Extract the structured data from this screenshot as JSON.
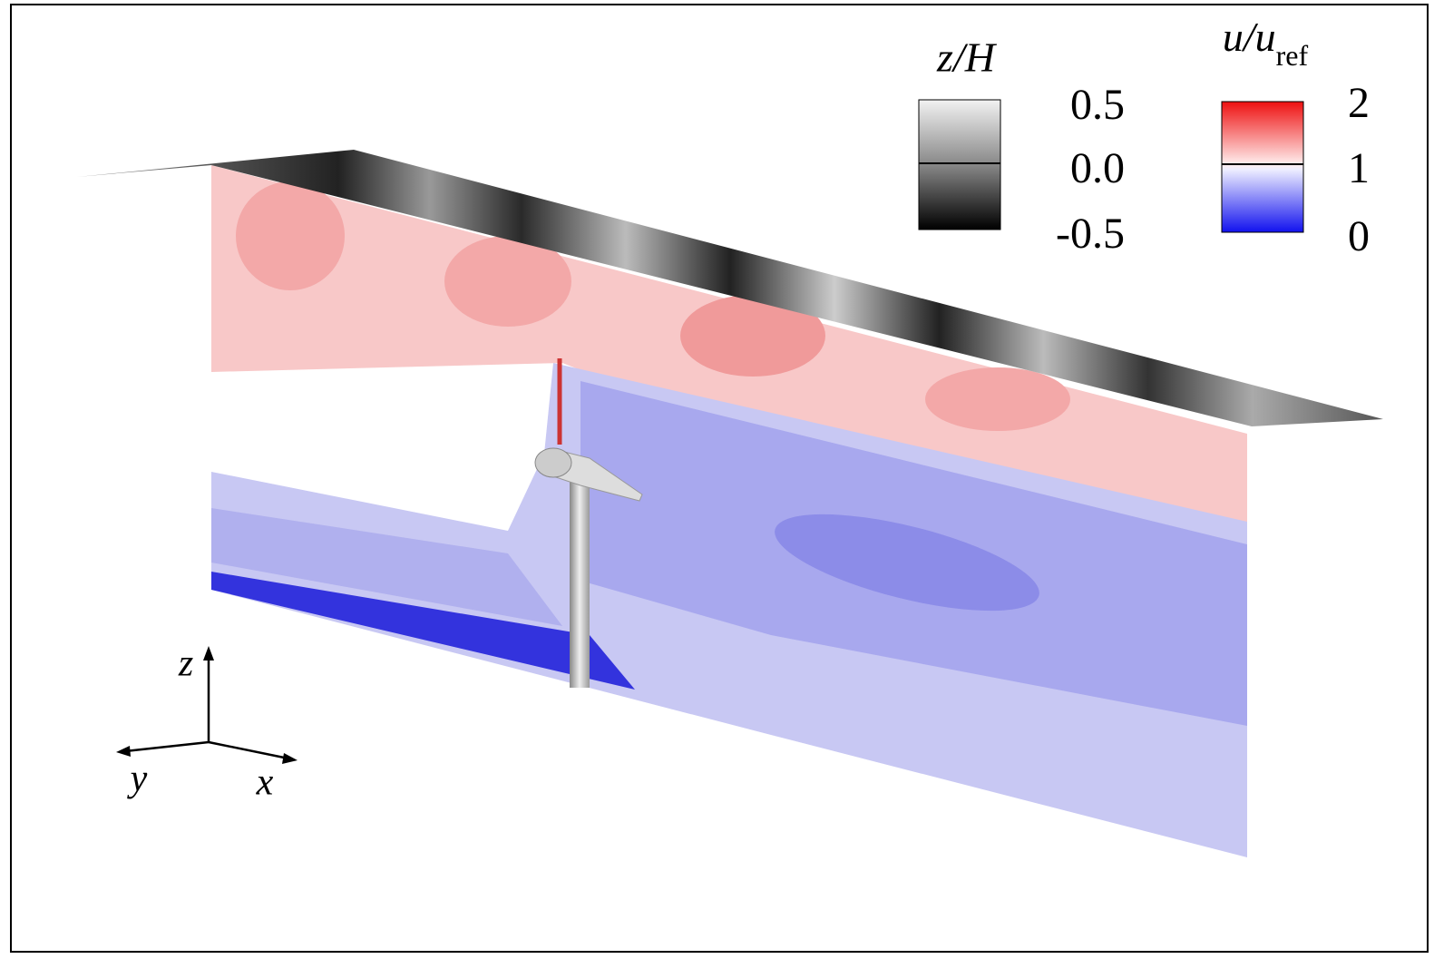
{
  "legends": [
    {
      "title": {
        "main": "z/H"
      },
      "ticks": [
        "0.5",
        "0.0",
        "-0.5"
      ]
    },
    {
      "title": {
        "main": "u/u",
        "sub": "ref"
      },
      "ticks": [
        "2",
        "1",
        "0"
      ]
    }
  ],
  "axes": {
    "z": "z",
    "y": "y",
    "x": "x"
  }
}
